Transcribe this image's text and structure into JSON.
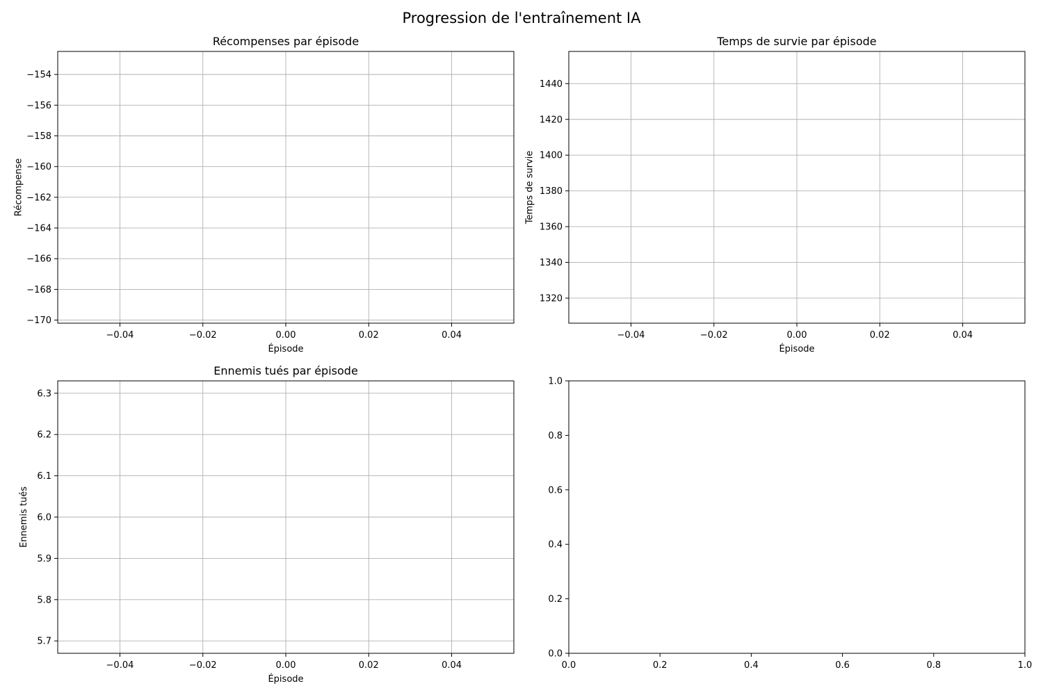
{
  "figure": {
    "suptitle": "Progression de l'entraînement IA"
  },
  "chart_data": [
    {
      "type": "line",
      "title": "Récompenses par épisode",
      "xlabel": "Épisode",
      "ylabel": "Récompense",
      "xlim": [
        -0.055,
        0.055
      ],
      "ylim": [
        -170.2,
        -152.5
      ],
      "xticks": [
        -0.04,
        -0.02,
        0.0,
        0.02,
        0.04
      ],
      "xtick_labels": [
        "−0.04",
        "−0.02",
        "0.00",
        "0.02",
        "0.04"
      ],
      "yticks": [
        -170,
        -168,
        -166,
        -164,
        -162,
        -160,
        -158,
        -156,
        -154
      ],
      "ytick_labels": [
        "−170",
        "−168",
        "−166",
        "−164",
        "−162",
        "−160",
        "−158",
        "−156",
        "−154"
      ],
      "grid": true,
      "series": []
    },
    {
      "type": "line",
      "title": "Temps de survie par épisode",
      "xlabel": "Épisode",
      "ylabel": "Temps de survie",
      "xlim": [
        -0.055,
        0.055
      ],
      "ylim": [
        1306,
        1458
      ],
      "xticks": [
        -0.04,
        -0.02,
        0.0,
        0.02,
        0.04
      ],
      "xtick_labels": [
        "−0.04",
        "−0.02",
        "0.00",
        "0.02",
        "0.04"
      ],
      "yticks": [
        1320,
        1340,
        1360,
        1380,
        1400,
        1420,
        1440
      ],
      "ytick_labels": [
        "1320",
        "1340",
        "1360",
        "1380",
        "1400",
        "1420",
        "1440"
      ],
      "grid": true,
      "series": []
    },
    {
      "type": "line",
      "title": "Ennemis tués par épisode",
      "xlabel": "Épisode",
      "ylabel": "Ennemis tués",
      "xlim": [
        -0.055,
        0.055
      ],
      "ylim": [
        5.67,
        6.33
      ],
      "xticks": [
        -0.04,
        -0.02,
        0.0,
        0.02,
        0.04
      ],
      "xtick_labels": [
        "−0.04",
        "−0.02",
        "0.00",
        "0.02",
        "0.04"
      ],
      "yticks": [
        5.7,
        5.8,
        5.9,
        6.0,
        6.1,
        6.2,
        6.3
      ],
      "ytick_labels": [
        "5.7",
        "5.8",
        "5.9",
        "6.0",
        "6.1",
        "6.2",
        "6.3"
      ],
      "grid": true,
      "series": []
    },
    {
      "type": "line",
      "title": "",
      "xlabel": "",
      "ylabel": "",
      "xlim": [
        0,
        1
      ],
      "ylim": [
        0,
        1
      ],
      "xticks": [
        0,
        0.2,
        0.4,
        0.6,
        0.8,
        1.0
      ],
      "xtick_labels": [
        "0.0",
        "0.2",
        "0.4",
        "0.6",
        "0.8",
        "1.0"
      ],
      "yticks": [
        0,
        0.2,
        0.4,
        0.6,
        0.8,
        1.0
      ],
      "ytick_labels": [
        "0.0",
        "0.2",
        "0.4",
        "0.6",
        "0.8",
        "1.0"
      ],
      "grid": false,
      "series": []
    }
  ]
}
